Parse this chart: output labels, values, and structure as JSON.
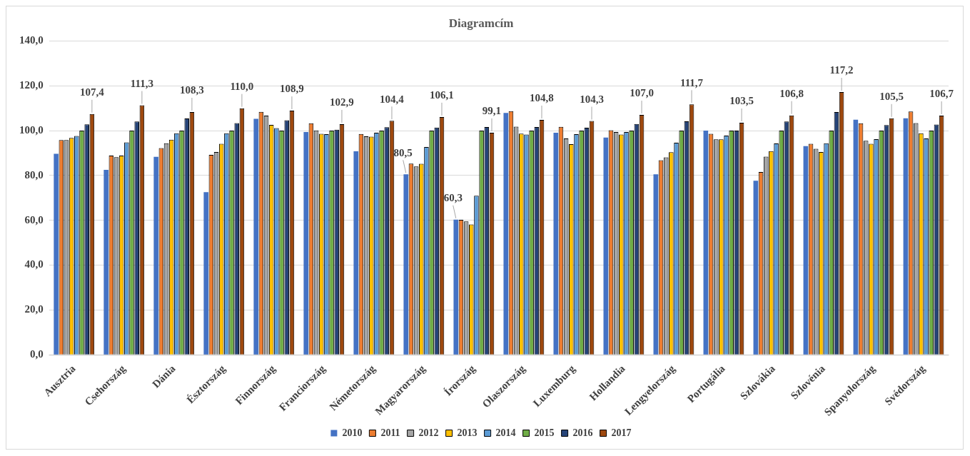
{
  "chart_data": {
    "type": "bar",
    "title": "Diagramcím",
    "categories": [
      "Ausztria",
      "Csehország",
      "Dánia",
      "Észtország",
      "Finnország",
      "Franciország",
      "Németország",
      "Magyarország",
      "Írország",
      "Olaszország",
      "Luxemburg",
      "Hollandia",
      "Lengyelország",
      "Portugália",
      "Szlovákia",
      "Szlovénia",
      "Spanyolország",
      "Svédország"
    ],
    "series": [
      {
        "name": "2010",
        "color": "#4472c4",
        "values": [
          89.7,
          82.5,
          88.3,
          72.6,
          105.3,
          99.4,
          90.8,
          80.5,
          60.3,
          107.9,
          99.1,
          96.9,
          80.5,
          100.0,
          77.7,
          93.1,
          104.9,
          105.5
        ],
        "value_labels": [
          null,
          null,
          null,
          null,
          null,
          null,
          null,
          "80,5",
          "60,3",
          null,
          null,
          null,
          null,
          null,
          null,
          null,
          null,
          null
        ]
      },
      {
        "name": "2011",
        "color": "#ed7d31",
        "values": [
          95.8,
          88.9,
          92.2,
          89.2,
          108.4,
          103.3,
          98.5,
          85.3,
          60.2,
          108.7,
          101.7,
          100.2,
          86.8,
          98.6,
          81.6,
          94.1,
          103.3,
          108.5
        ]
      },
      {
        "name": "2012",
        "color": "#a5a5a5",
        "values": [
          95.8,
          88.2,
          94.4,
          90.5,
          106.7,
          100.1,
          97.5,
          84.0,
          59.5,
          101.8,
          96.5,
          99.4,
          88.1,
          96.1,
          88.4,
          91.9,
          95.5,
          103.4
        ]
      },
      {
        "name": "2013",
        "color": "#ffc000",
        "values": [
          96.8,
          88.9,
          96.0,
          94.1,
          102.6,
          98.6,
          97.3,
          85.2,
          58.2,
          98.7,
          94.0,
          98.3,
          90.4,
          96.1,
          90.9,
          90.5,
          94.1,
          98.8
        ]
      },
      {
        "name": "2014",
        "color": "#5b9bd5",
        "values": [
          97.6,
          94.8,
          98.8,
          98.8,
          101.1,
          98.4,
          99.1,
          92.7,
          71.0,
          98.3,
          98.4,
          99.4,
          94.6,
          97.8,
          94.3,
          94.4,
          96.2,
          96.5
        ]
      },
      {
        "name": "2015",
        "color": "#70ad47",
        "values": [
          100,
          100,
          100,
          100,
          100,
          100,
          100,
          100,
          100,
          100,
          100,
          100,
          100,
          100,
          100,
          100,
          100,
          100
        ]
      },
      {
        "name": "2016",
        "color": "#264478",
        "values": [
          102.8,
          104.1,
          105.4,
          103.4,
          104.6,
          100.4,
          101.5,
          101.4,
          101.6,
          101.6,
          101.3,
          103.0,
          104.2,
          100.0,
          104.1,
          108.3,
          102.5,
          102.7
        ]
      },
      {
        "name": "2017",
        "color": "#9e480e",
        "values": [
          107.4,
          111.3,
          108.3,
          110.0,
          108.9,
          102.9,
          104.4,
          106.1,
          99.1,
          104.8,
          104.3,
          107.0,
          111.7,
          103.5,
          106.8,
          117.2,
          105.5,
          106.7
        ],
        "value_labels": [
          "107,4",
          "111,3",
          "108,3",
          "110,0",
          "108,9",
          "102,9",
          "104,4",
          "106,1",
          "99,1",
          "104,8",
          "104,3",
          "107,0",
          "111,7",
          "103,5",
          "106,8",
          "117,2",
          "105,5",
          "106,7"
        ]
      }
    ],
    "ylim": [
      0,
      140
    ],
    "yticks": [
      {
        "value": 0,
        "label": "0,0"
      },
      {
        "value": 20,
        "label": "20,0"
      },
      {
        "value": 40,
        "label": "40,0"
      },
      {
        "value": 60,
        "label": "60,0"
      },
      {
        "value": 80,
        "label": "80,0"
      },
      {
        "value": 100,
        "label": "100,0"
      },
      {
        "value": 120,
        "label": "120,0"
      },
      {
        "value": 140,
        "label": "140,0"
      }
    ],
    "grid": "y",
    "legend": "bottom"
  }
}
